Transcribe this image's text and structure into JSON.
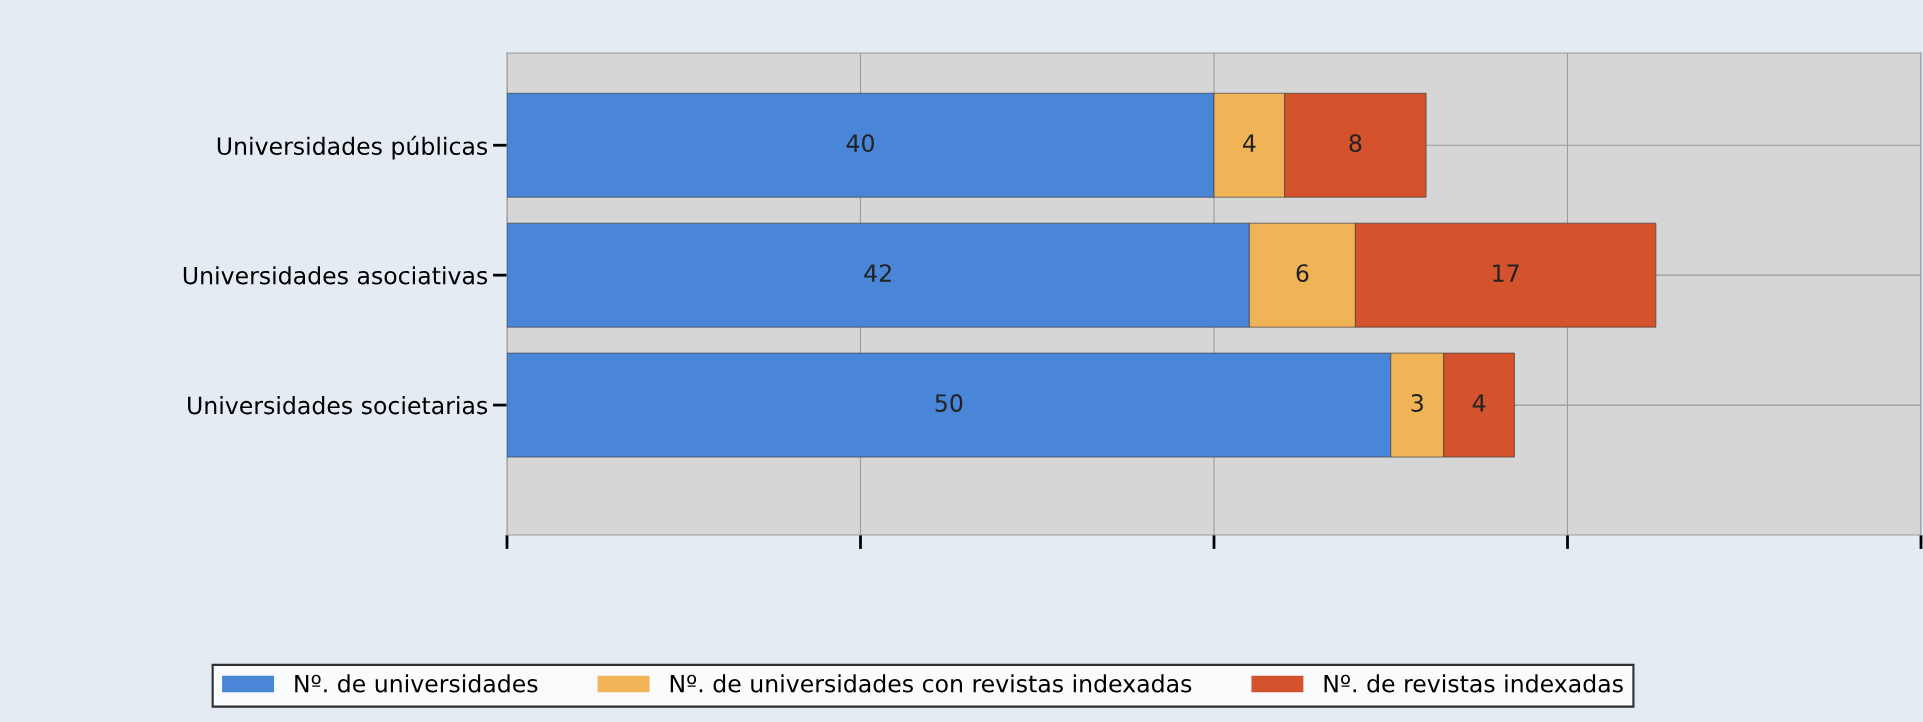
{
  "chart_data": {
    "type": "bar",
    "orientation": "horizontal",
    "stacked": true,
    "categories": [
      "Universidades públicas",
      "Universidades asociativas",
      "Universidades societarias"
    ],
    "series": [
      {
        "name": "Nº. de universidades",
        "color": "#4a86d8",
        "values": [
          40,
          42,
          50
        ]
      },
      {
        "name": "Nº. de universidades con revistas indexadas",
        "color": "#f0b457",
        "values": [
          4,
          6,
          3
        ]
      },
      {
        "name": "Nº. de revistas indexadas",
        "color": "#d4522c",
        "values": [
          8,
          17,
          4
        ]
      }
    ],
    "xlim": [
      0,
      80
    ],
    "xticks": [
      {
        "value": 0,
        "label": null
      },
      {
        "value": 20,
        "label": null
      },
      {
        "value": 40,
        "label": null
      },
      {
        "value": 60,
        "label": null
      },
      {
        "value": 80,
        "label": null
      }
    ],
    "tick_labels": "y",
    "grid": true,
    "data_labels": true,
    "legend": "bottom"
  }
}
